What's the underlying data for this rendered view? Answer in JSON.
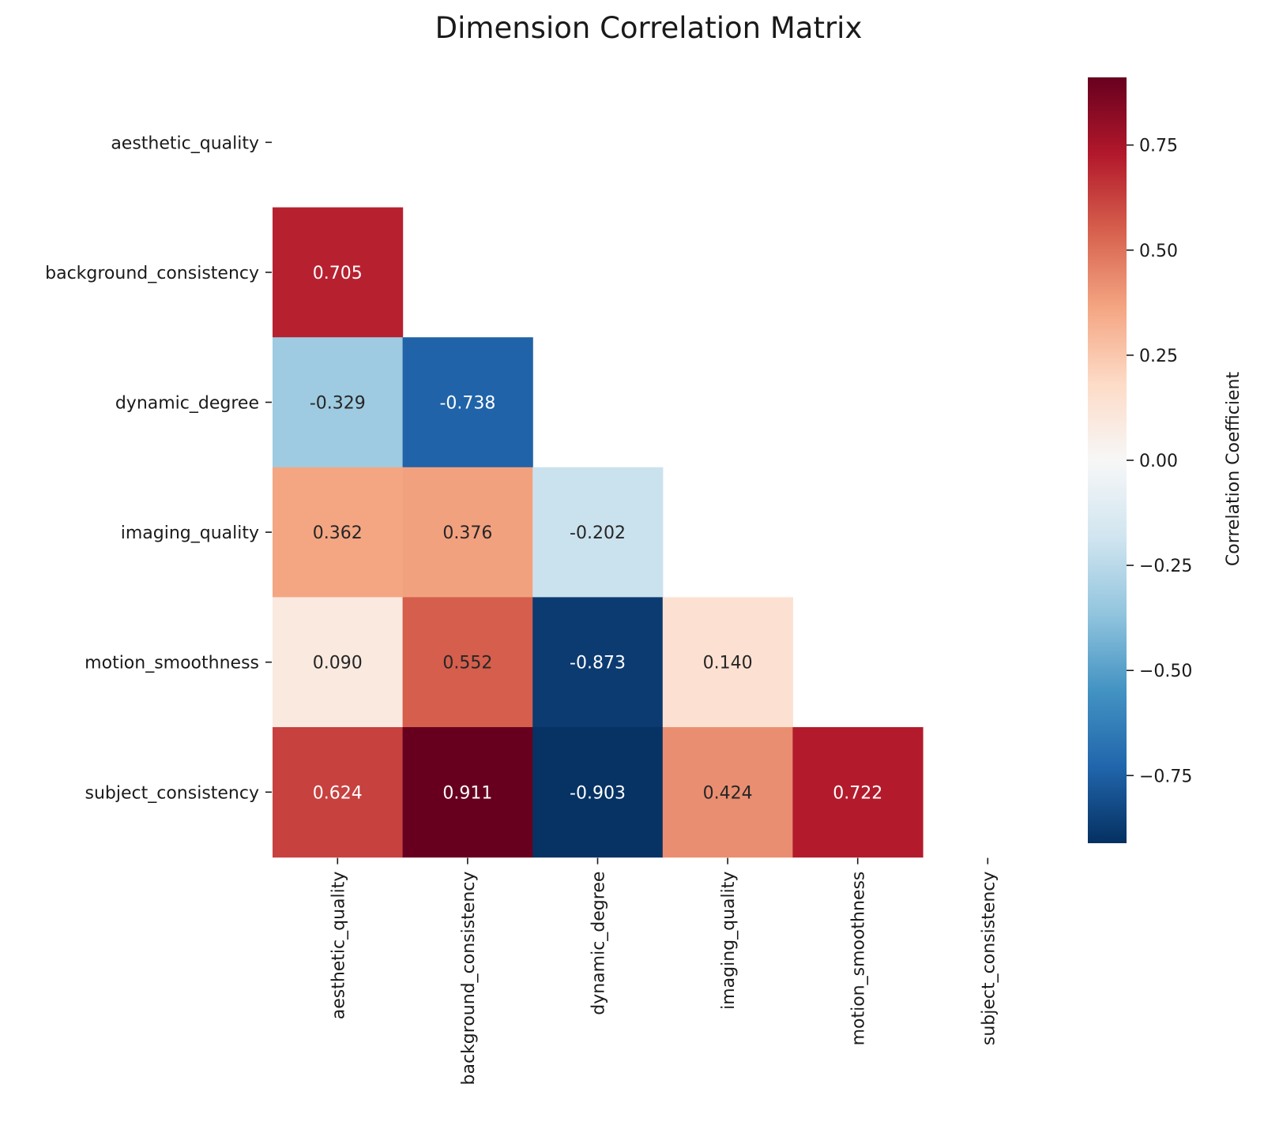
{
  "chart_data": {
    "type": "heatmap",
    "title": "Dimension Correlation Matrix",
    "labels": [
      "aesthetic_quality",
      "background_consistency",
      "dynamic_degree",
      "imaging_quality",
      "motion_smoothness",
      "subject_consistency"
    ],
    "mask": "upper-triangle-including-diagonal",
    "cells": [
      {
        "row": 1,
        "col": 0,
        "value": 0.705,
        "text": "0.705"
      },
      {
        "row": 2,
        "col": 0,
        "value": -0.329,
        "text": "-0.329"
      },
      {
        "row": 2,
        "col": 1,
        "value": -0.738,
        "text": "-0.738"
      },
      {
        "row": 3,
        "col": 0,
        "value": 0.362,
        "text": "0.362"
      },
      {
        "row": 3,
        "col": 1,
        "value": 0.376,
        "text": "0.376"
      },
      {
        "row": 3,
        "col": 2,
        "value": -0.202,
        "text": "-0.202"
      },
      {
        "row": 4,
        "col": 0,
        "value": 0.09,
        "text": "0.090"
      },
      {
        "row": 4,
        "col": 1,
        "value": 0.552,
        "text": "0.552"
      },
      {
        "row": 4,
        "col": 2,
        "value": -0.873,
        "text": "-0.873"
      },
      {
        "row": 4,
        "col": 3,
        "value": 0.14,
        "text": "0.140"
      },
      {
        "row": 5,
        "col": 0,
        "value": 0.624,
        "text": "0.624"
      },
      {
        "row": 5,
        "col": 1,
        "value": 0.911,
        "text": "0.911"
      },
      {
        "row": 5,
        "col": 2,
        "value": -0.903,
        "text": "-0.903"
      },
      {
        "row": 5,
        "col": 3,
        "value": 0.424,
        "text": "0.424"
      },
      {
        "row": 5,
        "col": 4,
        "value": 0.722,
        "text": "0.722"
      }
    ],
    "colormap": "RdBu_r",
    "vmin": -0.911,
    "vmax": 0.911,
    "colorbar": {
      "label": "Correlation Coefficient",
      "ticks": [
        0.75,
        0.5,
        0.25,
        0.0,
        -0.25,
        -0.5,
        -0.75
      ],
      "tick_labels": [
        "0.75",
        "0.50",
        "0.25",
        "0.00",
        "−0.25",
        "−0.50",
        "−0.75"
      ]
    }
  }
}
